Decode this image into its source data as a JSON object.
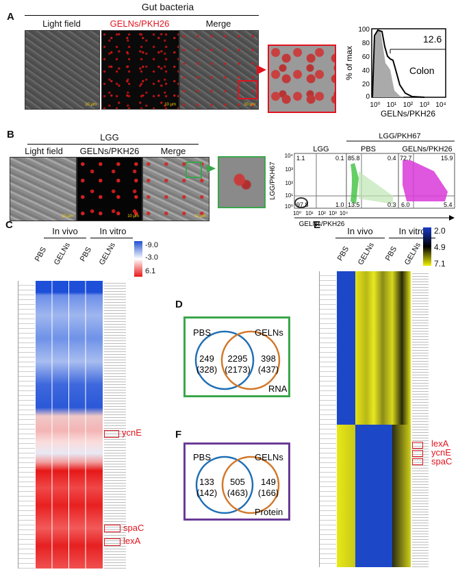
{
  "panelA": {
    "letter": "A",
    "header": "Gut bacteria",
    "cols": [
      "Light field",
      "GELNs/PKH26",
      "Merge"
    ],
    "scale": "10 μm",
    "hist": {
      "ylabel": "% of max",
      "xlabel": "GELNs/PKH26",
      "value": "12.6",
      "tissue": "Colon",
      "yticks": [
        "0",
        "20",
        "40",
        "60",
        "80",
        "100"
      ],
      "xticks": [
        "10⁰",
        "10¹",
        "10²",
        "10³",
        "10⁴"
      ]
    }
  },
  "panelB": {
    "letter": "B",
    "header": "LGG",
    "cols": [
      "Light field",
      "GELNs/PKH26",
      "Merge"
    ],
    "scale": "10 μm",
    "flow": {
      "group_header": "LGG/PKH67",
      "cols": [
        "LGG",
        "PBS",
        "GELNs/PKH26"
      ],
      "ylabel": "LGG/PKH67",
      "xlabel": "GELNs/PKH26",
      "ticks": [
        "10⁰",
        "10¹",
        "10²",
        "10³",
        "10⁴"
      ],
      "quads": [
        [
          "1.1",
          "0.1",
          "97.8",
          "1.0"
        ],
        [
          "85.8",
          "0.4",
          "13.5",
          "0.3"
        ],
        [
          "72.7",
          "15.9",
          "6.0",
          "5.4"
        ]
      ]
    }
  },
  "panelC": {
    "letter": "C",
    "groups": [
      "In vivo",
      "In vitro"
    ],
    "cols": [
      "PBS",
      "GELNs",
      "PBS",
      "GELNs"
    ],
    "legend": [
      "-9.0",
      "-3.0",
      "6.1"
    ],
    "genes": [
      "ycnE",
      "spaC",
      "lexA"
    ]
  },
  "panelD": {
    "letter": "D",
    "left": "PBS",
    "right": "GELNs",
    "only_left": "249",
    "only_left_p": "(328)",
    "both": "2295",
    "both_p": "(2173)",
    "only_right": "398",
    "only_right_p": "(437)",
    "type": "RNA"
  },
  "panelF": {
    "letter": "F",
    "left": "PBS",
    "right": "GELNs",
    "only_left": "133",
    "only_left_p": "(142)",
    "both": "505",
    "both_p": "(463)",
    "only_right": "149",
    "only_right_p": "(166)",
    "type": "Protein"
  },
  "panelE": {
    "letter": "E",
    "groups": [
      "In vivo",
      "In vitro"
    ],
    "cols": [
      "PBS",
      "GELNs",
      "PBS",
      "GELNs"
    ],
    "legend": [
      "2.0",
      "4.9",
      "7.1"
    ],
    "genes": [
      "lexA",
      "ycnE",
      "spaC"
    ]
  },
  "colors": {
    "blue": "#1f6fb4",
    "orange": "#d2782a",
    "green": "#3aa64a",
    "purple": "#6a3a96",
    "red": "#e0141e"
  }
}
